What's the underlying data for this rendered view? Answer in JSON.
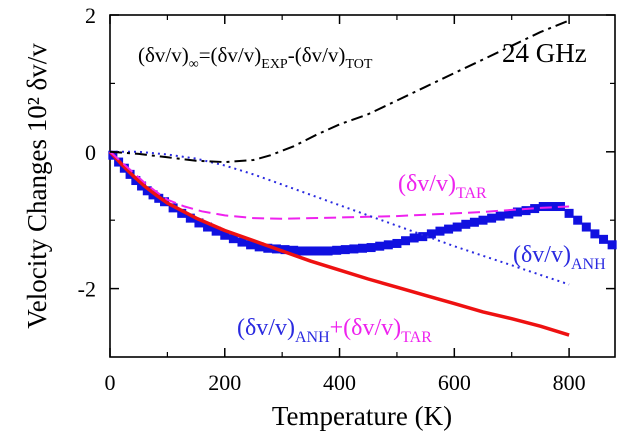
{
  "chart_data": {
    "type": "line",
    "xlabel": "Temperature (K)",
    "ylabel": "Velocity Changes 10² δv/v",
    "xlim": [
      0,
      880
    ],
    "ylim": [
      -3.0,
      2.0
    ],
    "x_ticks": [
      "0",
      "200",
      "400",
      "600",
      "800"
    ],
    "y_ticks": [
      "2",
      "0",
      "-2"
    ],
    "annotations": {
      "frequency": "24 GHz",
      "formula": {
        "a": "(δv/v)",
        "a_sub": "∞",
        "b": "=(δv/v)",
        "b_sub": "EXP",
        "c": "-(δv/v)",
        "c_sub": "TOT"
      },
      "tar": {
        "main": "(δv/v)",
        "sub": "TAR"
      },
      "anh": {
        "main": "(δv/v)",
        "sub": "ANH"
      },
      "sum": {
        "a": "(δv/v)",
        "a_sub": "ANH",
        "b": "+(δv/v)",
        "b_sub": "TAR"
      }
    },
    "colors": {
      "exp": "#1010e0",
      "tot": "#ee1111",
      "tar": "#ee22ee",
      "anh": "#2a2ae0",
      "inf": "#000000"
    },
    "series": [
      {
        "style": "squares",
        "x": [
          5,
          15,
          25,
          35,
          45,
          55,
          65,
          75,
          85,
          95,
          110,
          125,
          140,
          155,
          170,
          185,
          200,
          215,
          230,
          245,
          260,
          275,
          290,
          305,
          320,
          335,
          350,
          365,
          380,
          395,
          410,
          425,
          440,
          455,
          470,
          485,
          500,
          515,
          530,
          545,
          560,
          575,
          590,
          605,
          620,
          635,
          650,
          665,
          680,
          695,
          710,
          725,
          740,
          755,
          770,
          785,
          800,
          815,
          830,
          845,
          860,
          875
        ],
        "y": [
          -0.05,
          -0.15,
          -0.24,
          -0.33,
          -0.42,
          -0.5,
          -0.57,
          -0.63,
          -0.68,
          -0.73,
          -0.82,
          -0.9,
          -0.97,
          -1.04,
          -1.1,
          -1.16,
          -1.22,
          -1.27,
          -1.32,
          -1.36,
          -1.39,
          -1.41,
          -1.42,
          -1.43,
          -1.44,
          -1.45,
          -1.45,
          -1.45,
          -1.45,
          -1.44,
          -1.43,
          -1.42,
          -1.41,
          -1.4,
          -1.38,
          -1.36,
          -1.34,
          -1.3,
          -1.26,
          -1.24,
          -1.2,
          -1.16,
          -1.13,
          -1.1,
          -1.06,
          -1.03,
          -1.0,
          -0.97,
          -0.94,
          -0.91,
          -0.88,
          -0.86,
          -0.83,
          -0.8,
          -0.8,
          -0.8,
          -0.9,
          -1.0,
          -1.1,
          -1.2,
          -1.28,
          -1.36
        ]
      },
      {
        "style": "solid",
        "x": [
          0,
          20,
          40,
          60,
          80,
          100,
          150,
          200,
          250,
          300,
          350,
          400,
          450,
          500,
          550,
          600,
          650,
          700,
          750,
          800
        ],
        "y": [
          0.0,
          -0.18,
          -0.35,
          -0.5,
          -0.63,
          -0.75,
          -0.97,
          -1.15,
          -1.3,
          -1.45,
          -1.6,
          -1.73,
          -1.86,
          -1.98,
          -2.1,
          -2.22,
          -2.34,
          -2.44,
          -2.55,
          -2.68
        ]
      },
      {
        "style": "dashed",
        "x": [
          0,
          20,
          40,
          60,
          80,
          100,
          130,
          160,
          200,
          250,
          300,
          350,
          400,
          450,
          500,
          550,
          600,
          650,
          700,
          750,
          800
        ],
        "y": [
          0.0,
          -0.15,
          -0.3,
          -0.45,
          -0.58,
          -0.7,
          -0.8,
          -0.87,
          -0.93,
          -0.97,
          -0.98,
          -0.97,
          -0.96,
          -0.95,
          -0.94,
          -0.92,
          -0.9,
          -0.88,
          -0.85,
          -0.82,
          -0.8
        ]
      },
      {
        "style": "dotted",
        "x": [
          0,
          50,
          100,
          150,
          200,
          250,
          300,
          350,
          400,
          450,
          500,
          550,
          600,
          650,
          700,
          750,
          800
        ],
        "y": [
          0.0,
          0.0,
          -0.04,
          -0.1,
          -0.2,
          -0.33,
          -0.48,
          -0.63,
          -0.78,
          -0.93,
          -1.08,
          -1.23,
          -1.38,
          -1.52,
          -1.66,
          -1.8,
          -1.94
        ]
      },
      {
        "style": "dashdot",
        "x": [
          0,
          50,
          100,
          150,
          200,
          250,
          280,
          320,
          360,
          400,
          450,
          500,
          550,
          600,
          650,
          700,
          750,
          800
        ],
        "y": [
          0.0,
          -0.03,
          -0.08,
          -0.13,
          -0.15,
          -0.12,
          -0.05,
          0.08,
          0.25,
          0.4,
          0.55,
          0.75,
          0.95,
          1.15,
          1.35,
          1.55,
          1.75,
          1.92
        ]
      }
    ]
  }
}
